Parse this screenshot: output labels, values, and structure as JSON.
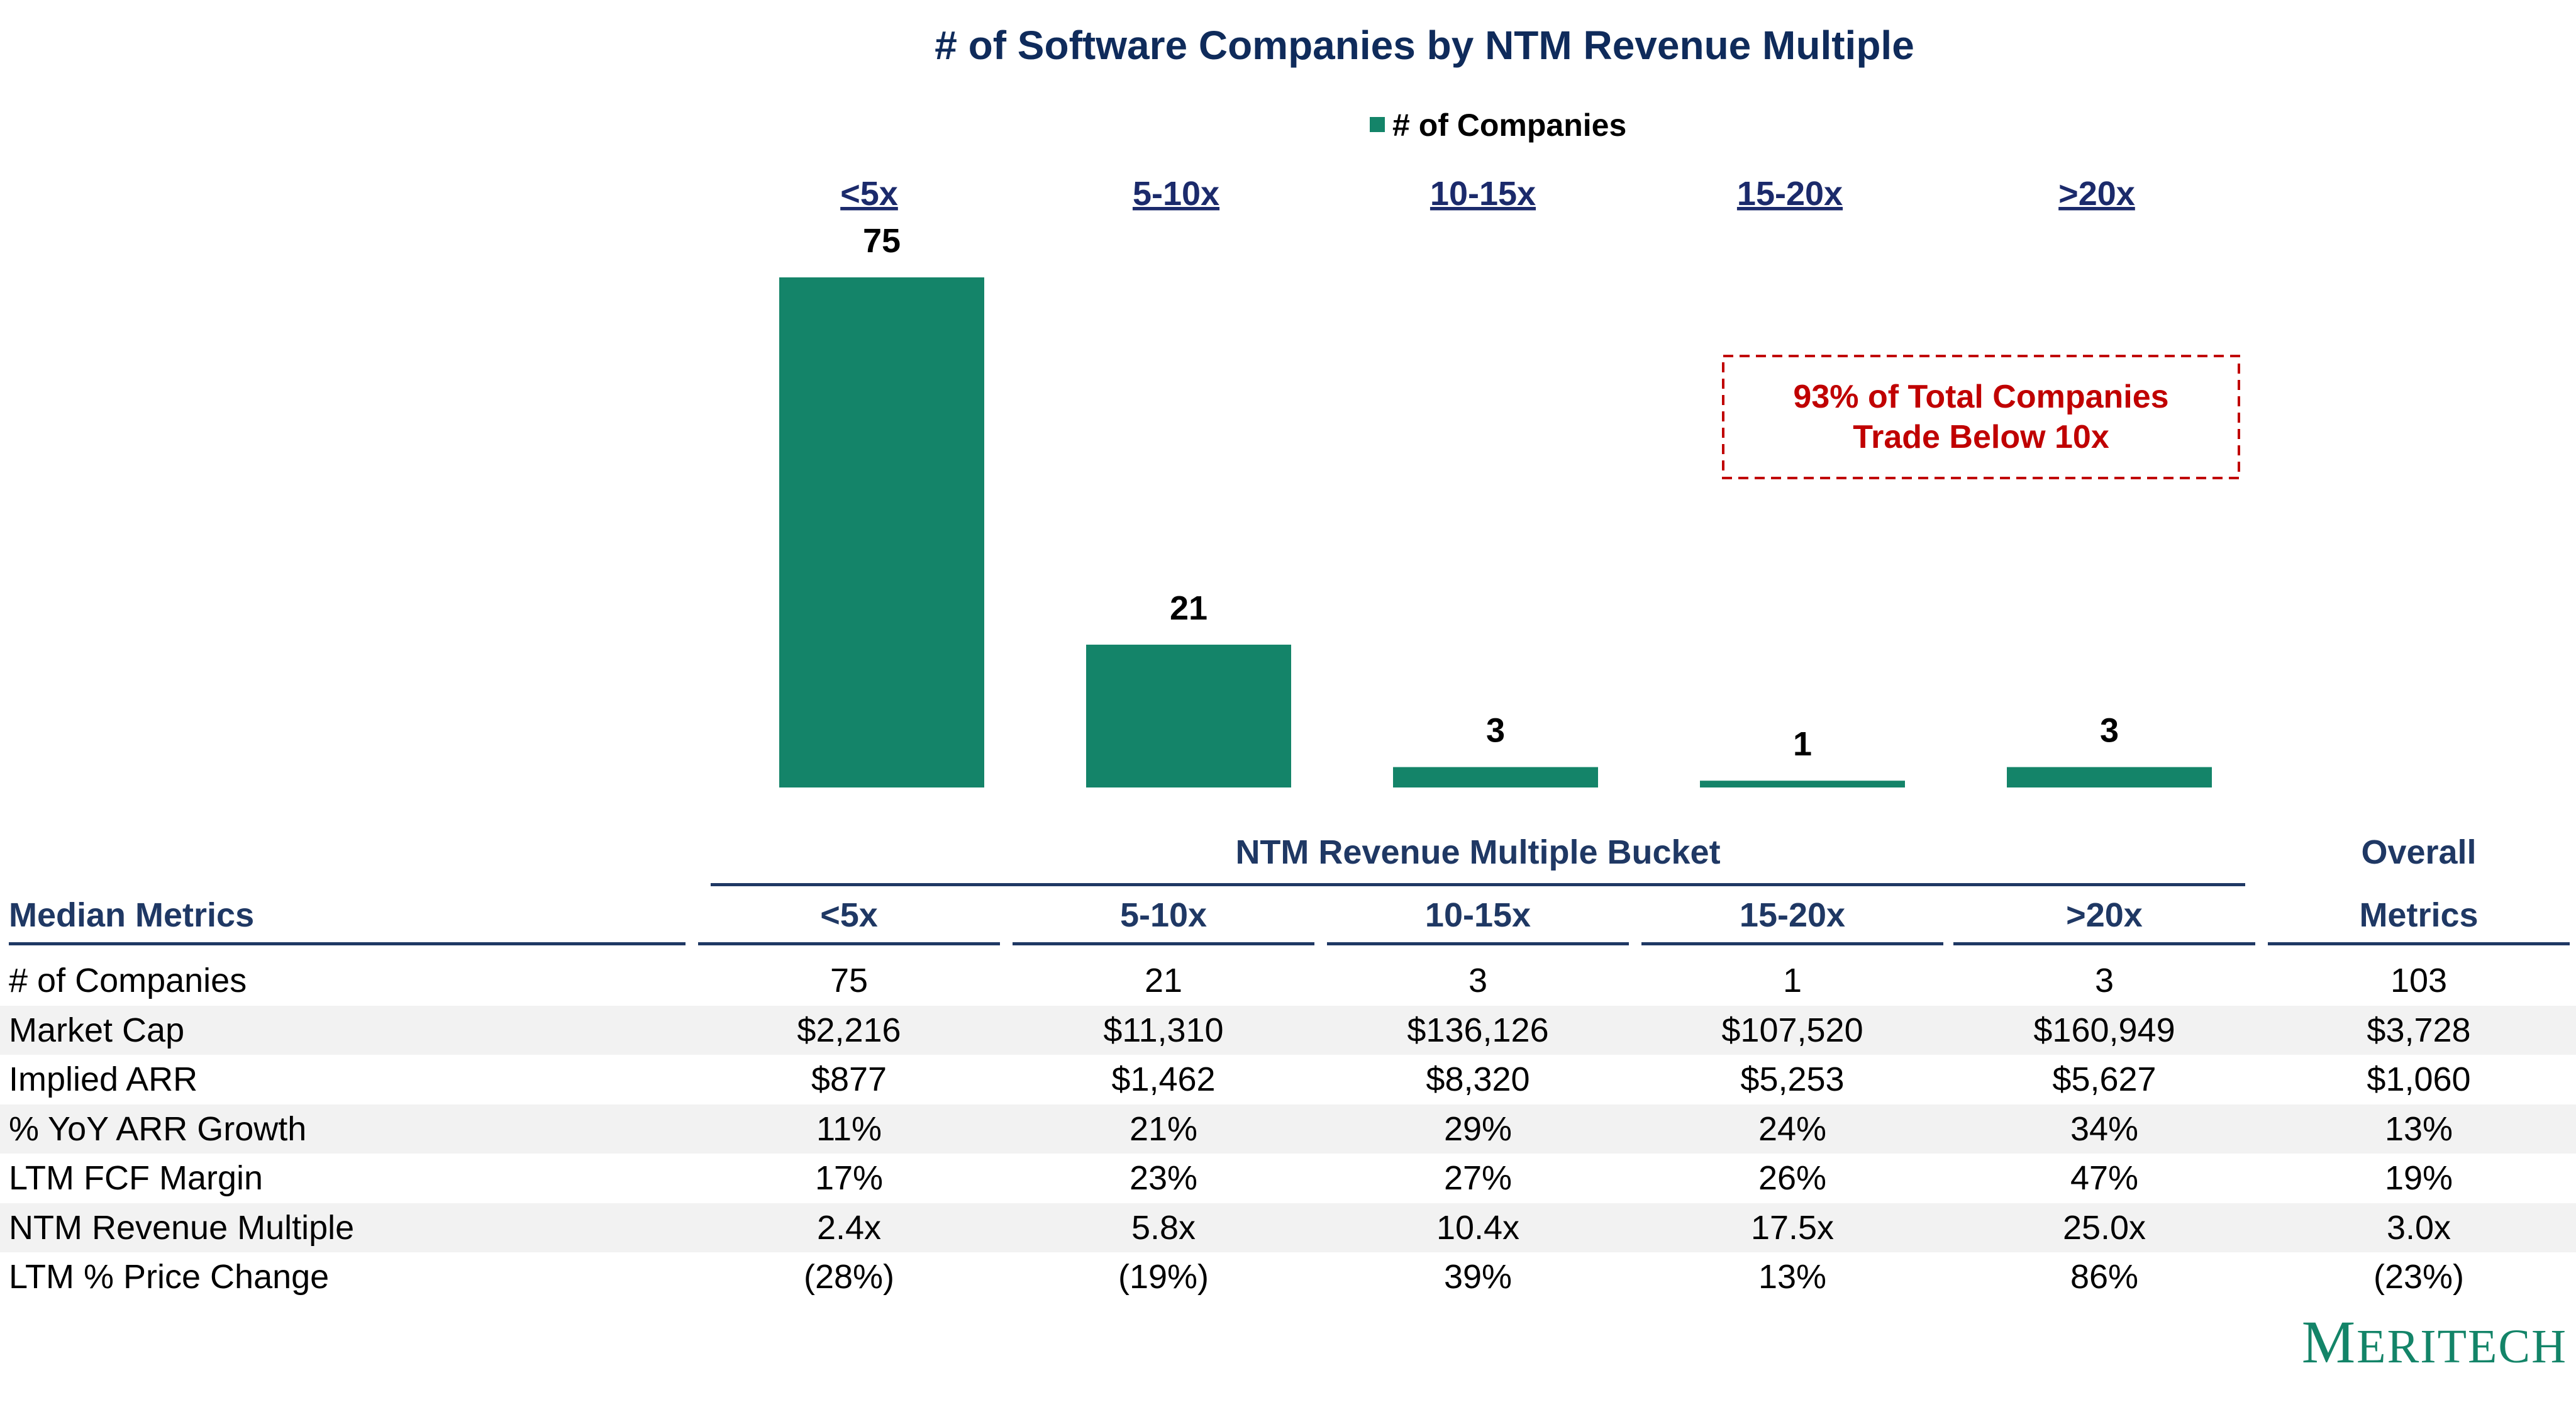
{
  "chart_data": {
    "type": "bar",
    "title": "# of Software Companies by NTM Revenue Multiple",
    "legend": "# of Companies",
    "legend_position": "top-center",
    "categories": [
      "<5x",
      "5-10x",
      "10-15x",
      "15-20x",
      ">20x"
    ],
    "values": [
      75,
      21,
      3,
      1,
      3
    ],
    "ylim": [
      0,
      80
    ],
    "xlabel": "",
    "ylabel": "",
    "bar_color": "#148469",
    "annotation": {
      "line1": "93% of Total Companies",
      "line2": "Trade Below 10x",
      "color": "#C00000"
    }
  },
  "table": {
    "group_header": "NTM Revenue Multiple Bucket",
    "overall_header_line1": "Overall",
    "overall_header_line2": "Metrics",
    "label_header": "Median Metrics",
    "columns": [
      "<5x",
      "5-10x",
      "10-15x",
      "15-20x",
      ">20x"
    ],
    "rows": [
      {
        "label": "# of Companies",
        "values": [
          "75",
          "21",
          "3",
          "1",
          "3"
        ],
        "overall": "103"
      },
      {
        "label": "Market Cap",
        "values": [
          "$2,216",
          "$11,310",
          "$136,126",
          "$107,520",
          "$160,949"
        ],
        "overall": "$3,728"
      },
      {
        "label": "Implied ARR",
        "values": [
          "$877",
          "$1,462",
          "$8,320",
          "$5,253",
          "$5,627"
        ],
        "overall": "$1,060"
      },
      {
        "label": "% YoY ARR Growth",
        "values": [
          "11%",
          "21%",
          "29%",
          "24%",
          "34%"
        ],
        "overall": "13%"
      },
      {
        "label": "LTM FCF Margin",
        "values": [
          "17%",
          "23%",
          "27%",
          "26%",
          "47%"
        ],
        "overall": "19%"
      },
      {
        "label": "NTM Revenue Multiple",
        "values": [
          "2.4x",
          "5.8x",
          "10.4x",
          "17.5x",
          "25.0x"
        ],
        "overall": "3.0x"
      },
      {
        "label": "LTM % Price Change",
        "values": [
          "(28%)",
          "(19%)",
          "39%",
          "13%",
          "86%"
        ],
        "overall": "(23%)"
      }
    ]
  },
  "logo": {
    "first": "M",
    "rest": "ERITECH"
  }
}
